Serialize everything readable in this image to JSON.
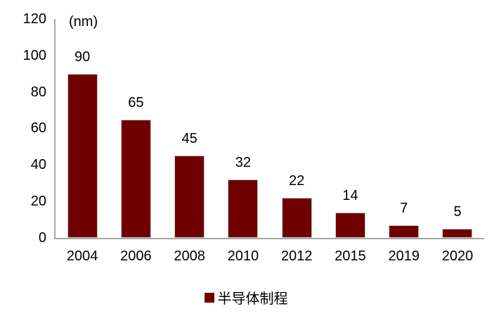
{
  "chart_data": {
    "type": "bar",
    "title": "",
    "unit_label": "(nm)",
    "categories": [
      "2004",
      "2006",
      "2008",
      "2010",
      "2012",
      "2015",
      "2019",
      "2020"
    ],
    "values": [
      90,
      65,
      45,
      32,
      22,
      14,
      7,
      5
    ],
    "series": [
      {
        "name": "半导体制程",
        "values": [
          90,
          65,
          45,
          32,
          22,
          14,
          7,
          5
        ]
      }
    ],
    "xlabel": "",
    "ylabel": "(nm)",
    "ylim": [
      0,
      120
    ],
    "y_ticks": [
      120,
      100,
      80,
      60,
      40,
      20,
      0
    ],
    "grid": "off",
    "legend_position": "bottom",
    "bar_color": "#700000",
    "axis_color": "#a6a6a6",
    "background_color": "#ffffff"
  },
  "legend": {
    "label": "半导体制程"
  }
}
